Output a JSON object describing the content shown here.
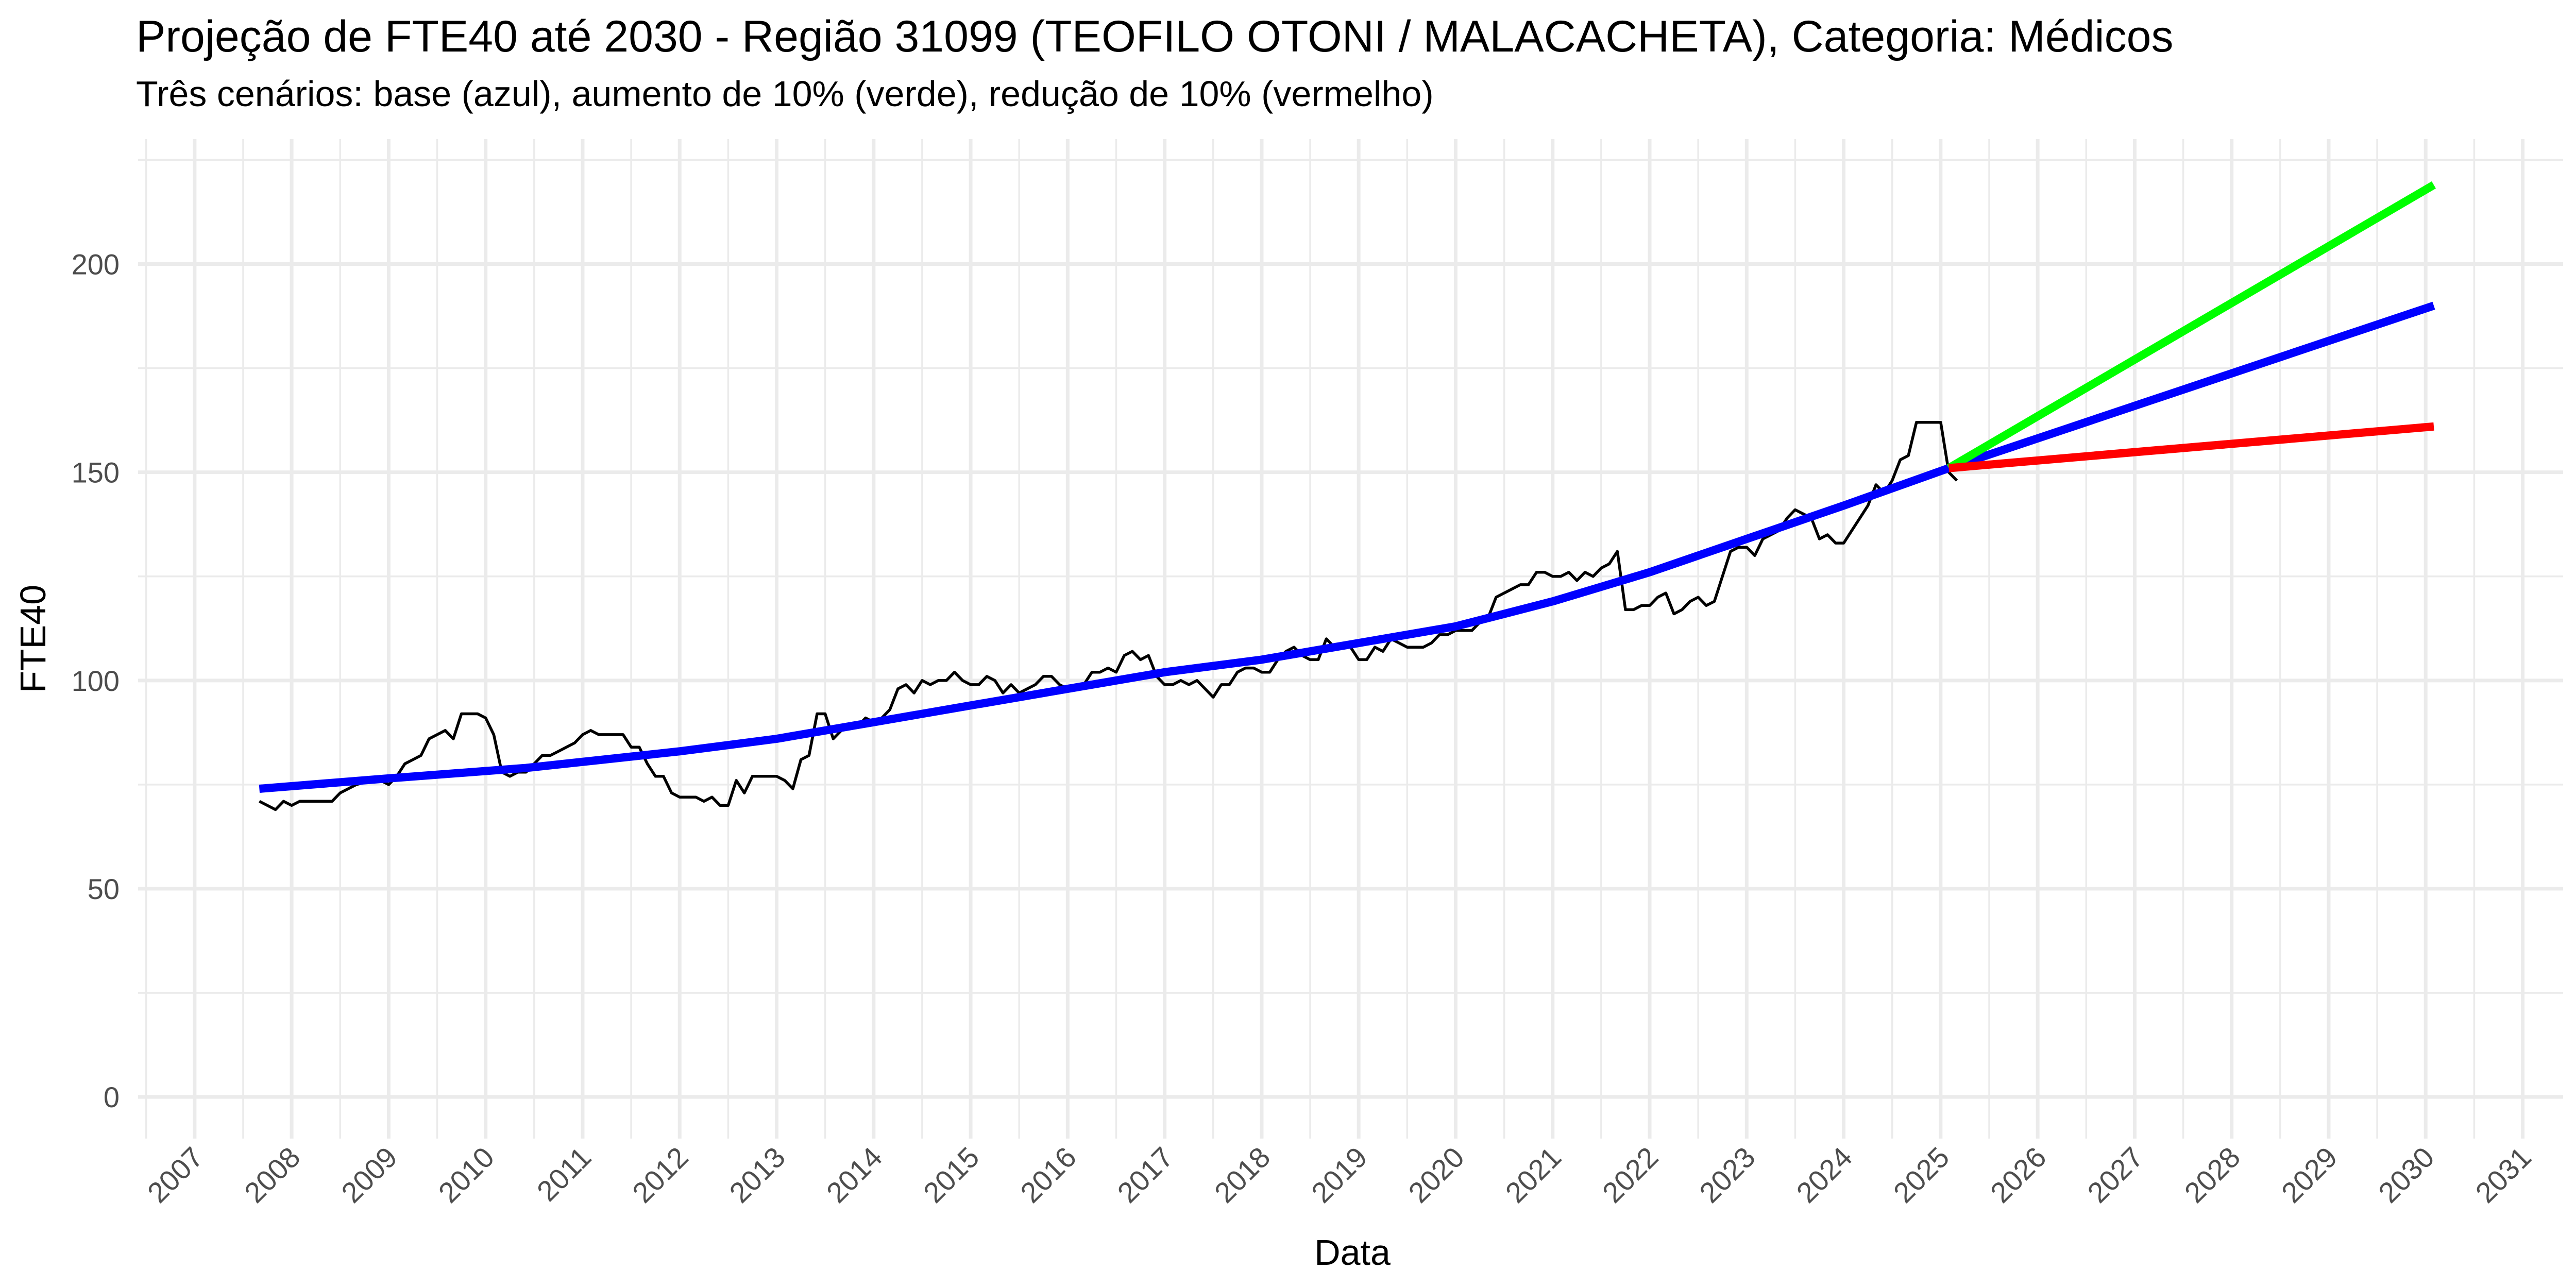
{
  "chart_data": {
    "type": "line",
    "title": "Projeção de FTE40 até 2030 - Região 31099 (TEOFILO OTONI / MALACACHETA), Categoria: Médicos",
    "subtitle": "Três cenários: base (azul), aumento de 10% (verde), redução de 10% (vermelho)",
    "xlabel": "Data",
    "ylabel": "FTE40",
    "x_ticks": [
      "2007",
      "2008",
      "2009",
      "2010",
      "2011",
      "2012",
      "2013",
      "2014",
      "2015",
      "2016",
      "2017",
      "2018",
      "2019",
      "2020",
      "2021",
      "2022",
      "2023",
      "2024",
      "2025",
      "2026",
      "2027",
      "2028",
      "2029",
      "2030",
      "2031"
    ],
    "y_ticks": [
      0,
      50,
      100,
      150,
      200
    ],
    "xlim": [
      "2006-06-01",
      "2031-06-01"
    ],
    "ylim": [
      -10,
      230
    ],
    "grid": true,
    "series": [
      {
        "color": "#000000",
        "points": [
          [
            "2007-09",
            71
          ],
          [
            "2007-10",
            70
          ],
          [
            "2007-11",
            69
          ],
          [
            "2007-12",
            71
          ],
          [
            "2008-01",
            70
          ],
          [
            "2008-02",
            71
          ],
          [
            "2008-03",
            71
          ],
          [
            "2008-06",
            71
          ],
          [
            "2008-07",
            73
          ],
          [
            "2008-09",
            75
          ],
          [
            "2008-11",
            76
          ],
          [
            "2008-12",
            76
          ],
          [
            "2009-01",
            75
          ],
          [
            "2009-02",
            77
          ],
          [
            "2009-03",
            80
          ],
          [
            "2009-04",
            81
          ],
          [
            "2009-05",
            82
          ],
          [
            "2009-06",
            86
          ],
          [
            "2009-08",
            88
          ],
          [
            "2009-09",
            86
          ],
          [
            "2009-10",
            92
          ],
          [
            "2009-11",
            92
          ],
          [
            "2009-12",
            92
          ],
          [
            "2010-01",
            91
          ],
          [
            "2010-02",
            87
          ],
          [
            "2010-03",
            78
          ],
          [
            "2010-04",
            77
          ],
          [
            "2010-05",
            78
          ],
          [
            "2010-06",
            78
          ],
          [
            "2010-07",
            80
          ],
          [
            "2010-08",
            82
          ],
          [
            "2010-09",
            82
          ],
          [
            "2010-10",
            83
          ],
          [
            "2010-11",
            84
          ],
          [
            "2010-12",
            85
          ],
          [
            "2011-01",
            87
          ],
          [
            "2011-02",
            88
          ],
          [
            "2011-03",
            87
          ],
          [
            "2011-06",
            87
          ],
          [
            "2011-07",
            84
          ],
          [
            "2011-08",
            84
          ],
          [
            "2011-09",
            80
          ],
          [
            "2011-10",
            77
          ],
          [
            "2011-11",
            77
          ],
          [
            "2011-12",
            73
          ],
          [
            "2012-01",
            72
          ],
          [
            "2012-03",
            72
          ],
          [
            "2012-04",
            71
          ],
          [
            "2012-05",
            72
          ],
          [
            "2012-06",
            70
          ],
          [
            "2012-07",
            70
          ],
          [
            "2012-08",
            76
          ],
          [
            "2012-09",
            73
          ],
          [
            "2012-10",
            77
          ],
          [
            "2012-12",
            77
          ],
          [
            "2013-01",
            77
          ],
          [
            "2013-02",
            76
          ],
          [
            "2013-03",
            74
          ],
          [
            "2013-04",
            81
          ],
          [
            "2013-05",
            82
          ],
          [
            "2013-06",
            92
          ],
          [
            "2013-07",
            92
          ],
          [
            "2013-08",
            86
          ],
          [
            "2013-09",
            88
          ],
          [
            "2013-11",
            89
          ],
          [
            "2013-12",
            91
          ],
          [
            "2014-01",
            90
          ],
          [
            "2014-02",
            91
          ],
          [
            "2014-03",
            93
          ],
          [
            "2014-04",
            98
          ],
          [
            "2014-05",
            99
          ],
          [
            "2014-06",
            97
          ],
          [
            "2014-07",
            100
          ],
          [
            "2014-08",
            99
          ],
          [
            "2014-09",
            100
          ],
          [
            "2014-10",
            100
          ],
          [
            "2014-11",
            102
          ],
          [
            "2014-12",
            100
          ],
          [
            "2015-01",
            99
          ],
          [
            "2015-02",
            99
          ],
          [
            "2015-03",
            101
          ],
          [
            "2015-04",
            100
          ],
          [
            "2015-05",
            97
          ],
          [
            "2015-06",
            99
          ],
          [
            "2015-07",
            97
          ],
          [
            "2015-08",
            98
          ],
          [
            "2015-09",
            99
          ],
          [
            "2015-10",
            101
          ],
          [
            "2015-11",
            101
          ],
          [
            "2015-12",
            99
          ],
          [
            "2016-01",
            98
          ],
          [
            "2016-02",
            98
          ],
          [
            "2016-03",
            99
          ],
          [
            "2016-04",
            102
          ],
          [
            "2016-05",
            102
          ],
          [
            "2016-06",
            103
          ],
          [
            "2016-07",
            102
          ],
          [
            "2016-08",
            106
          ],
          [
            "2016-09",
            107
          ],
          [
            "2016-10",
            105
          ],
          [
            "2016-11",
            106
          ],
          [
            "2016-12",
            101
          ],
          [
            "2017-01",
            99
          ],
          [
            "2017-02",
            99
          ],
          [
            "2017-03",
            100
          ],
          [
            "2017-04",
            99
          ],
          [
            "2017-05",
            100
          ],
          [
            "2017-06",
            98
          ],
          [
            "2017-07",
            96
          ],
          [
            "2017-08",
            99
          ],
          [
            "2017-09",
            99
          ],
          [
            "2017-10",
            102
          ],
          [
            "2017-11",
            103
          ],
          [
            "2017-12",
            103
          ],
          [
            "2018-01",
            102
          ],
          [
            "2018-02",
            102
          ],
          [
            "2018-03",
            105
          ],
          [
            "2018-04",
            107
          ],
          [
            "2018-05",
            108
          ],
          [
            "2018-06",
            106
          ],
          [
            "2018-07",
            105
          ],
          [
            "2018-08",
            105
          ],
          [
            "2018-09",
            110
          ],
          [
            "2018-10",
            108
          ],
          [
            "2018-11",
            108
          ],
          [
            "2018-12",
            108
          ],
          [
            "2019-01",
            105
          ],
          [
            "2019-02",
            105
          ],
          [
            "2019-03",
            108
          ],
          [
            "2019-04",
            107
          ],
          [
            "2019-05",
            110
          ],
          [
            "2019-06",
            109
          ],
          [
            "2019-07",
            108
          ],
          [
            "2019-08",
            108
          ],
          [
            "2019-09",
            108
          ],
          [
            "2019-10",
            109
          ],
          [
            "2019-11",
            111
          ],
          [
            "2019-12",
            111
          ],
          [
            "2020-01",
            112
          ],
          [
            "2020-02",
            112
          ],
          [
            "2020-03",
            112
          ],
          [
            "2020-04",
            114
          ],
          [
            "2020-05",
            115
          ],
          [
            "2020-06",
            120
          ],
          [
            "2020-07",
            121
          ],
          [
            "2020-08",
            122
          ],
          [
            "2020-09",
            123
          ],
          [
            "2020-10",
            123
          ],
          [
            "2020-11",
            126
          ],
          [
            "2020-12",
            126
          ],
          [
            "2021-01",
            125
          ],
          [
            "2021-02",
            125
          ],
          [
            "2021-03",
            126
          ],
          [
            "2021-04",
            124
          ],
          [
            "2021-05",
            126
          ],
          [
            "2021-06",
            125
          ],
          [
            "2021-07",
            127
          ],
          [
            "2021-08",
            128
          ],
          [
            "2021-09",
            131
          ],
          [
            "2021-10",
            117
          ],
          [
            "2021-11",
            117
          ],
          [
            "2021-12",
            118
          ],
          [
            "2022-01",
            118
          ],
          [
            "2022-02",
            120
          ],
          [
            "2022-03",
            121
          ],
          [
            "2022-04",
            116
          ],
          [
            "2022-05",
            117
          ],
          [
            "2022-06",
            119
          ],
          [
            "2022-07",
            120
          ],
          [
            "2022-08",
            118
          ],
          [
            "2022-09",
            119
          ],
          [
            "2022-10",
            125
          ],
          [
            "2022-11",
            131
          ],
          [
            "2022-12",
            132
          ],
          [
            "2023-01",
            132
          ],
          [
            "2023-02",
            130
          ],
          [
            "2023-03",
            134
          ],
          [
            "2023-04",
            135
          ],
          [
            "2023-05",
            136
          ],
          [
            "2023-06",
            139
          ],
          [
            "2023-07",
            141
          ],
          [
            "2023-08",
            140
          ],
          [
            "2023-09",
            139
          ],
          [
            "2023-10",
            134
          ],
          [
            "2023-11",
            135
          ],
          [
            "2023-12",
            133
          ],
          [
            "2024-01",
            133
          ],
          [
            "2024-02",
            136
          ],
          [
            "2024-03",
            139
          ],
          [
            "2024-04",
            142
          ],
          [
            "2024-05",
            147
          ],
          [
            "2024-06",
            145
          ],
          [
            "2024-07",
            148
          ],
          [
            "2024-08",
            153
          ],
          [
            "2024-09",
            154
          ],
          [
            "2024-10",
            162
          ],
          [
            "2024-11",
            162
          ],
          [
            "2024-12",
            162
          ],
          [
            "2025-01",
            162
          ],
          [
            "2025-02",
            150
          ],
          [
            "2025-03",
            148
          ]
        ]
      },
      {
        "color": "#0000ff",
        "points": [
          [
            "2007-09",
            74
          ],
          [
            "2009-01",
            76.5
          ],
          [
            "2010-06",
            79
          ],
          [
            "2012-01",
            83
          ],
          [
            "2013-01",
            86
          ],
          [
            "2014-01",
            90
          ],
          [
            "2015-01",
            94
          ],
          [
            "2016-01",
            98
          ],
          [
            "2017-01",
            102
          ],
          [
            "2018-01",
            105
          ],
          [
            "2019-01",
            109
          ],
          [
            "2020-01",
            113
          ],
          [
            "2021-01",
            119
          ],
          [
            "2022-01",
            126
          ],
          [
            "2023-01",
            134
          ],
          [
            "2024-01",
            142
          ],
          [
            "2025-02",
            151
          ],
          [
            "2030-02",
            190
          ]
        ]
      },
      {
        "color": "#00ff00",
        "points": [
          [
            "2025-02",
            151
          ],
          [
            "2030-02",
            219
          ]
        ]
      },
      {
        "color": "#ff0000",
        "points": [
          [
            "2025-02",
            151
          ],
          [
            "2030-02",
            161
          ]
        ]
      }
    ]
  }
}
